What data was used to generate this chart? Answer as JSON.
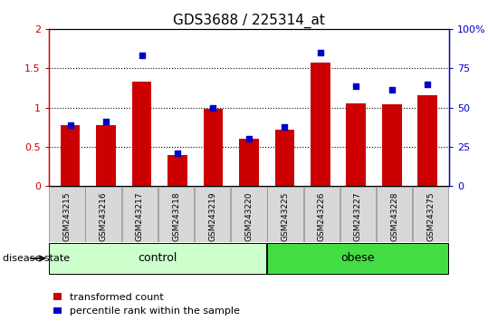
{
  "title": "GDS3688 / 225314_at",
  "samples": [
    "GSM243215",
    "GSM243216",
    "GSM243217",
    "GSM243218",
    "GSM243219",
    "GSM243220",
    "GSM243225",
    "GSM243226",
    "GSM243227",
    "GSM243228",
    "GSM243275"
  ],
  "transformed_count": [
    0.78,
    0.78,
    1.33,
    0.4,
    0.98,
    0.6,
    0.72,
    1.57,
    1.05,
    1.04,
    1.16
  ],
  "percentile_rank_left": [
    0.78,
    0.82,
    1.66,
    0.42,
    1.0,
    0.6,
    0.75,
    1.7,
    1.27,
    1.23,
    1.3
  ],
  "groups": [
    {
      "label": "control",
      "start": 0,
      "end": 6,
      "color": "#ccffcc"
    },
    {
      "label": "obese",
      "start": 6,
      "end": 11,
      "color": "#44dd44"
    }
  ],
  "disease_state_label": "disease state",
  "left_ylim": [
    0,
    2
  ],
  "left_yticks": [
    0,
    0.5,
    1.0,
    1.5,
    2.0
  ],
  "left_yticklabels": [
    "0",
    "0.5",
    "1",
    "1.5",
    "2"
  ],
  "right_ylim": [
    0,
    100
  ],
  "right_yticks": [
    0,
    25,
    50,
    75,
    100
  ],
  "right_yticklabels": [
    "0",
    "25",
    "50",
    "75",
    "100%"
  ],
  "bar_color": "#cc0000",
  "dot_color": "#0000cc",
  "bar_width": 0.55,
  "legend_items": [
    {
      "label": "transformed count",
      "color": "#cc0000"
    },
    {
      "label": "percentile rank within the sample",
      "color": "#0000cc"
    }
  ],
  "tick_fontsize": 8,
  "title_fontsize": 11,
  "sample_fontsize": 6.5,
  "group_label_fontsize": 9,
  "legend_fontsize": 8
}
